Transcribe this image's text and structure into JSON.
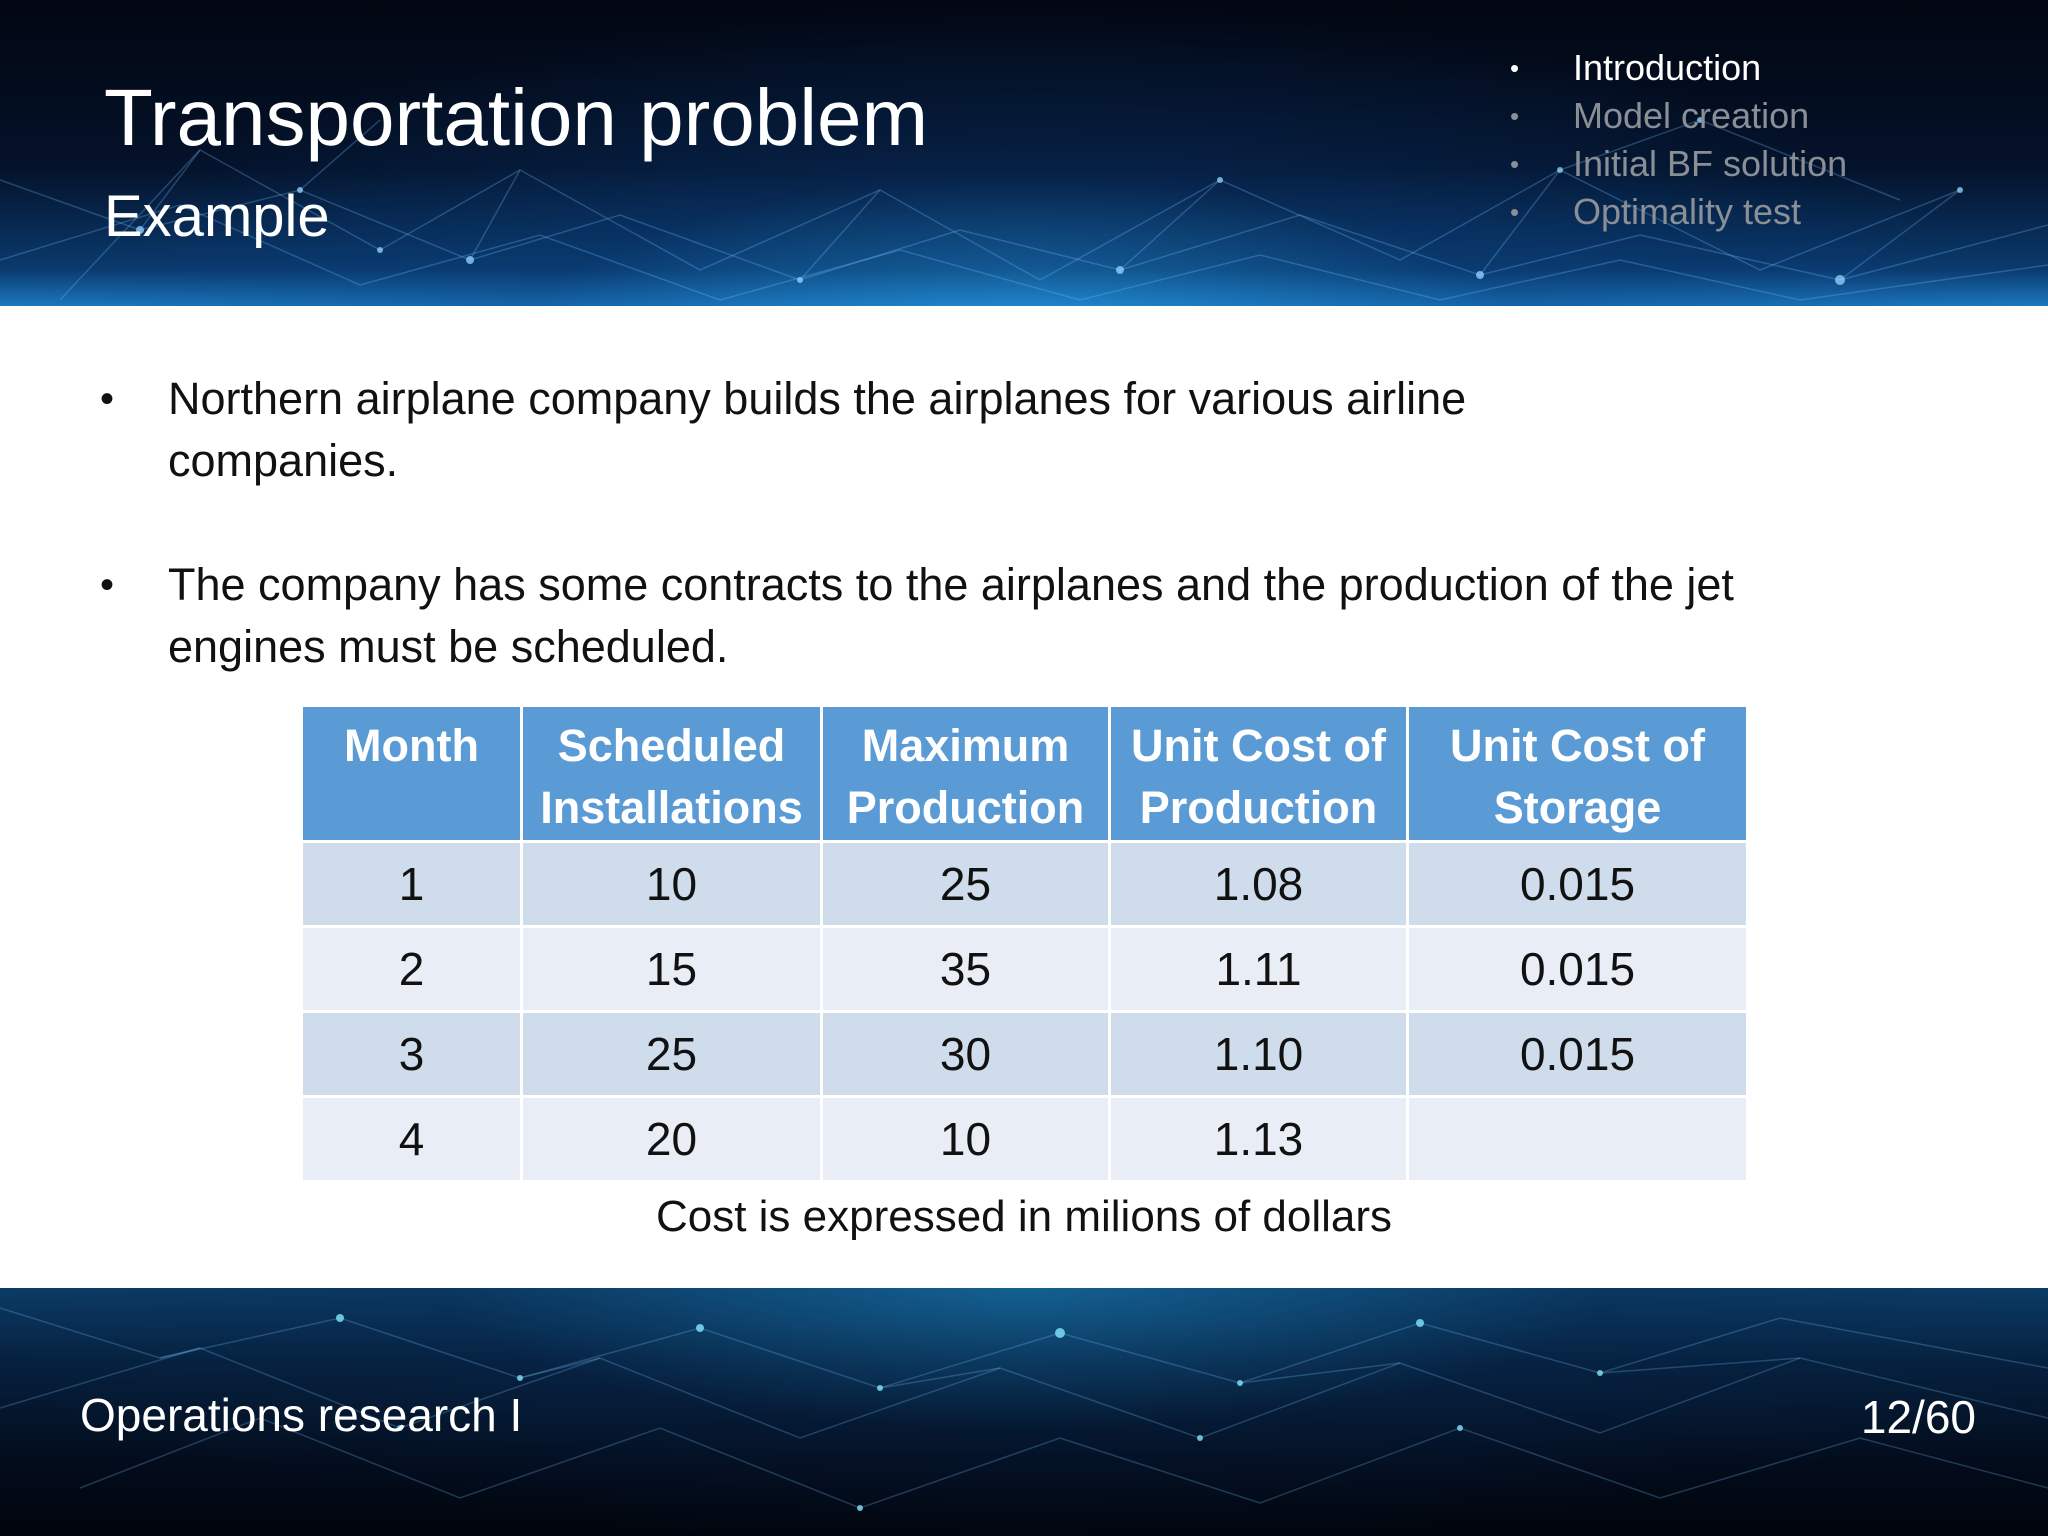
{
  "header": {
    "title": "Transportation problem",
    "subtitle": "Example",
    "nav": [
      {
        "label": "Introduction",
        "active": true
      },
      {
        "label": "Model creation",
        "active": false
      },
      {
        "label": "Initial BF solution",
        "active": false
      },
      {
        "label": "Optimality test",
        "active": false
      }
    ]
  },
  "body": {
    "bullets": [
      "Northern airplane company builds the airplanes for various airline companies.",
      "The company has some contracts to the airplanes and the production of the jet engines must be scheduled."
    ]
  },
  "table": {
    "headers": [
      "Month",
      "Scheduled Installations",
      "Maximum Production",
      "Unit Cost of Production",
      "Unit Cost of Storage"
    ],
    "rows": [
      [
        "1",
        "10",
        "25",
        "1.08",
        "0.015"
      ],
      [
        "2",
        "15",
        "35",
        "1.11",
        "0.015"
      ],
      [
        "3",
        "25",
        "30",
        "1.10",
        "0.015"
      ],
      [
        "4",
        "20",
        "10",
        "1.13",
        ""
      ]
    ],
    "note": "Cost is expressed in milions of dollars"
  },
  "footer": {
    "course": "Operations research I",
    "page": "12/60"
  },
  "colors": {
    "table_header": "#5b9bd5",
    "row_dark": "#cfdcec",
    "row_light": "#e9eef6",
    "nav_inactive": "#8a8f96"
  }
}
